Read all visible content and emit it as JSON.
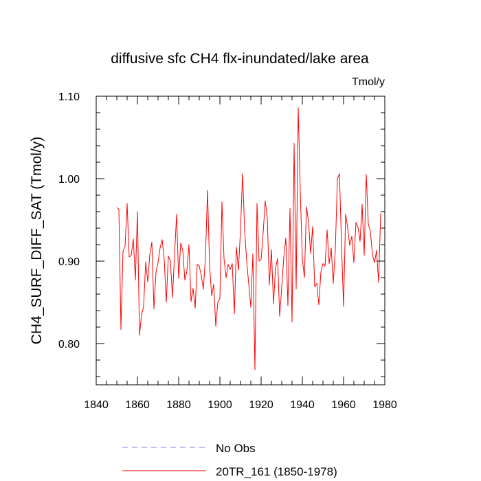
{
  "chart_data": {
    "type": "line",
    "title": "diffusive sfc CH4 flx-inundated/lake area",
    "units_label": "Tmol/y",
    "ylabel": "CH4_SURF_DIFF_SAT  (Tmol/y)",
    "xlabel": "",
    "xlim": [
      1840,
      1980
    ],
    "ylim": [
      0.75,
      1.1
    ],
    "x_ticks": [
      1840,
      1860,
      1880,
      1900,
      1920,
      1940,
      1960,
      1980
    ],
    "x_tick_labels": [
      "1840",
      "1860",
      "1880",
      "1900",
      "1920",
      "1940",
      "1960",
      "1980"
    ],
    "y_ticks": [
      0.8,
      0.9,
      1.0,
      1.1
    ],
    "y_tick_labels": [
      "0.80",
      "0.90",
      "1.00",
      "1.10"
    ],
    "grid": false,
    "legend_placement": "bottom",
    "series": [
      {
        "name": "No Obs",
        "color": "#8080ff",
        "dash": true,
        "x": [],
        "values": []
      },
      {
        "name": "20TR_161 (1850-1978)",
        "color": "#ff0000",
        "dash": false,
        "x": [
          1850,
          1851,
          1852,
          1853,
          1854,
          1855,
          1856,
          1857,
          1858,
          1859,
          1860,
          1861,
          1862,
          1863,
          1864,
          1865,
          1866,
          1867,
          1868,
          1869,
          1870,
          1871,
          1872,
          1873,
          1874,
          1875,
          1876,
          1877,
          1878,
          1879,
          1880,
          1881,
          1882,
          1883,
          1884,
          1885,
          1886,
          1887,
          1888,
          1889,
          1890,
          1891,
          1892,
          1893,
          1894,
          1895,
          1896,
          1897,
          1898,
          1899,
          1900,
          1901,
          1902,
          1903,
          1904,
          1905,
          1906,
          1907,
          1908,
          1909,
          1910,
          1911,
          1912,
          1913,
          1914,
          1915,
          1916,
          1917,
          1918,
          1919,
          1920,
          1921,
          1922,
          1923,
          1924,
          1925,
          1926,
          1927,
          1928,
          1929,
          1930,
          1931,
          1932,
          1933,
          1934,
          1935,
          1936,
          1937,
          1938,
          1939,
          1940,
          1941,
          1942,
          1943,
          1944,
          1945,
          1946,
          1947,
          1948,
          1949,
          1950,
          1951,
          1952,
          1953,
          1954,
          1955,
          1956,
          1957,
          1958,
          1959,
          1960,
          1961,
          1962,
          1963,
          1964,
          1965,
          1966,
          1967,
          1968,
          1969,
          1970,
          1971,
          1972,
          1973,
          1974,
          1975,
          1976,
          1977,
          1978
        ],
        "values": [
          0.965,
          0.963,
          0.817,
          0.912,
          0.918,
          0.97,
          0.905,
          0.907,
          0.927,
          0.877,
          0.96,
          0.81,
          0.835,
          0.845,
          0.899,
          0.875,
          0.908,
          0.923,
          0.842,
          0.887,
          0.898,
          0.916,
          0.926,
          0.902,
          0.85,
          0.906,
          0.9,
          0.856,
          0.907,
          0.957,
          0.879,
          0.922,
          0.913,
          0.877,
          0.888,
          0.92,
          0.851,
          0.867,
          0.843,
          0.896,
          0.894,
          0.882,
          0.866,
          0.905,
          0.986,
          0.895,
          0.858,
          0.872,
          0.821,
          0.85,
          0.855,
          0.972,
          0.903,
          0.88,
          0.896,
          0.89,
          0.897,
          0.836,
          0.917,
          0.889,
          0.938,
          1.006,
          0.938,
          0.9,
          0.872,
          0.844,
          0.909,
          0.768,
          0.97,
          0.9,
          0.902,
          0.935,
          0.973,
          0.952,
          0.871,
          0.914,
          0.848,
          0.892,
          0.903,
          0.833,
          0.868,
          0.905,
          0.928,
          0.846,
          0.964,
          0.826,
          1.043,
          0.866,
          1.086,
          0.985,
          0.903,
          0.88,
          0.966,
          0.948,
          0.909,
          0.942,
          0.869,
          0.873,
          0.847,
          0.887,
          0.897,
          0.894,
          0.938,
          0.897,
          0.916,
          0.873,
          0.914,
          1.0,
          1.006,
          0.92,
          0.845,
          0.957,
          0.94,
          0.919,
          0.93,
          0.898,
          0.947,
          0.941,
          0.924,
          0.969,
          0.907,
          1.005,
          0.945,
          0.936,
          0.908,
          0.898,
          0.913,
          0.874,
          0.958
        ]
      }
    ]
  }
}
